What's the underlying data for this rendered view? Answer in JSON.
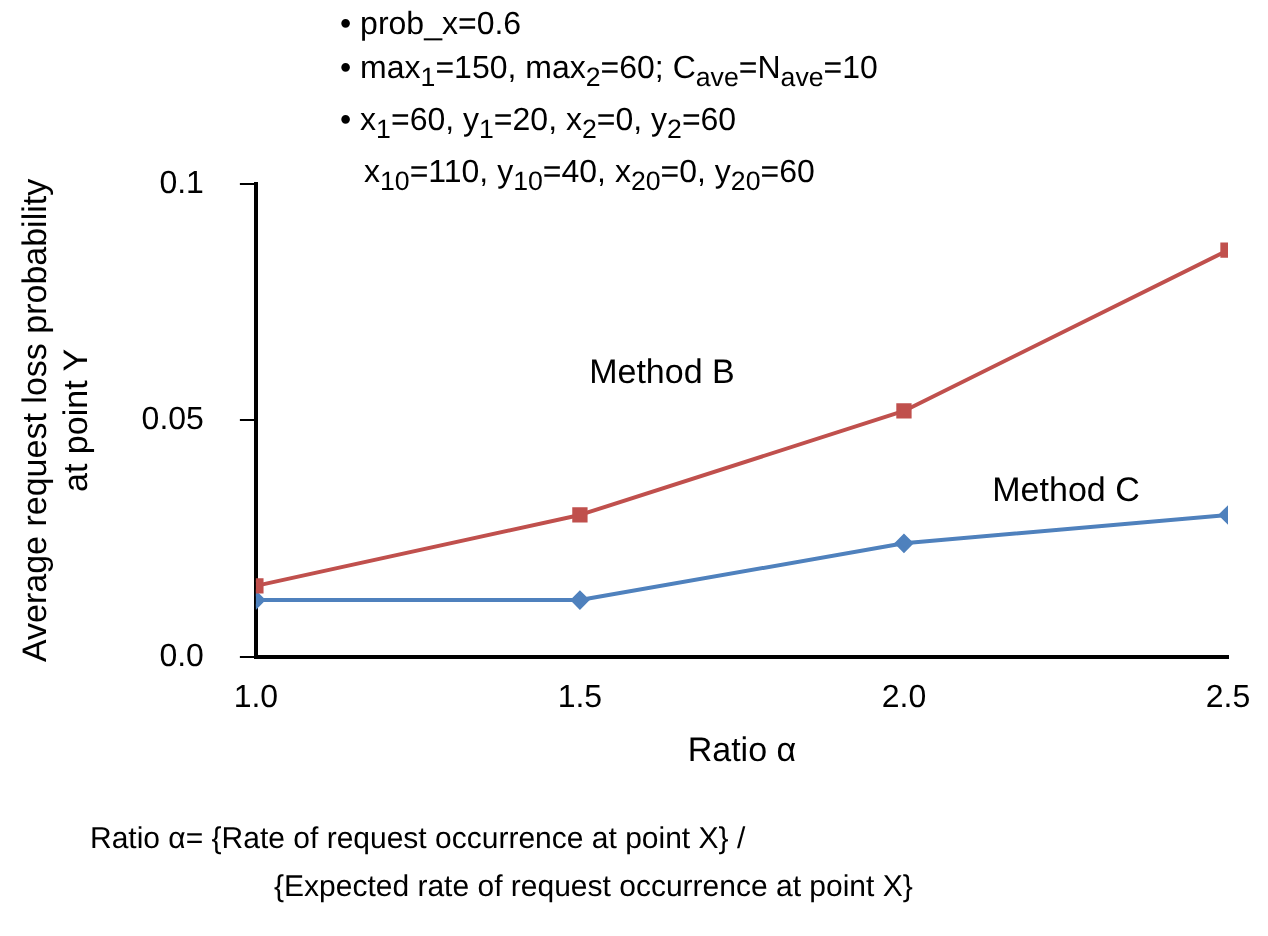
{
  "chart_data": {
    "type": "line",
    "xlabel": "Ratio α",
    "ylabel": "Average request loss probability at point Y",
    "x": [
      1.0,
      1.5,
      2.0,
      2.5
    ],
    "series": [
      {
        "name": "Method B",
        "color": "#c0504d",
        "marker": "square",
        "values": [
          0.015,
          0.03,
          0.052,
          0.086
        ]
      },
      {
        "name": "Method C",
        "color": "#4f81bd",
        "marker": "diamond",
        "values": [
          0.012,
          0.012,
          0.024,
          0.03
        ]
      }
    ],
    "xlim": [
      1.0,
      2.5
    ],
    "xticks": [
      {
        "value": 1.0,
        "label": "1.0"
      },
      1.5,
      {
        "value": 2.0,
        "label": "2.0"
      },
      2.5
    ],
    "ylim": [
      0,
      0.1
    ],
    "yticks": [
      {
        "value": 0,
        "label": "0.0"
      },
      0.05,
      0.1
    ],
    "grid": false,
    "legend": false,
    "line_style": "solid",
    "annotations": [
      "• prob_x=0.6",
      "• max$_{1}$=150, max$_{2}$=60; C$_{ave}$=N$_{ave}$=10",
      "• x$_{1}$=60, y$_{1}$=20, x$_{2}$=0, y$_{2}$=60",
      "x$_{10}$=110, y$_{10}$=40, x$_{20}$=0, y$_{20}$=60",
      "Ratio α= {Rate of request occurrence at point X} /",
      "{Expected rate of request occurrence at point X}"
    ]
  }
}
